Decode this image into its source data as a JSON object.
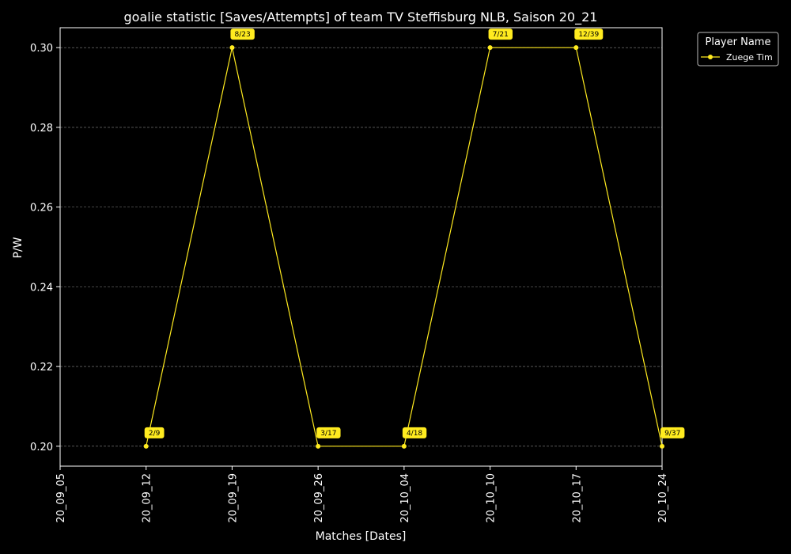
{
  "chart_data": {
    "type": "line",
    "title": "goalie statistic [Saves/Attempts] of team TV Steffisburg NLB, Saison 20_21",
    "xlabel": "Matches [Dates]",
    "ylabel": "P/W",
    "x_ticks": [
      "20_09_05",
      "20_09_12",
      "20_09_19",
      "20_09_26",
      "20_10_04",
      "20_10_10",
      "20_10_17",
      "20_10_24"
    ],
    "y_ticks": [
      "0.20",
      "0.22",
      "0.24",
      "0.26",
      "0.28",
      "0.30"
    ],
    "ylim": [
      0.195,
      0.305
    ],
    "grid": true,
    "legend": {
      "title": "Player Name",
      "placement": "outside-top-right"
    },
    "series": [
      {
        "name": "Zuege Tim",
        "color": "#ffeb1f",
        "points": [
          {
            "x": "20_09_12",
            "y": 0.2,
            "label": "2/9"
          },
          {
            "x": "20_09_19",
            "y": 0.3,
            "label": "8/23"
          },
          {
            "x": "20_09_26",
            "y": 0.2,
            "label": "3/17"
          },
          {
            "x": "20_10_04",
            "y": 0.2,
            "label": "4/18"
          },
          {
            "x": "20_10_10",
            "y": 0.3,
            "label": "7/21"
          },
          {
            "x": "20_10_17",
            "y": 0.3,
            "label": "12/39"
          },
          {
            "x": "20_10_24",
            "y": 0.2,
            "label": "9/37"
          }
        ]
      }
    ]
  }
}
